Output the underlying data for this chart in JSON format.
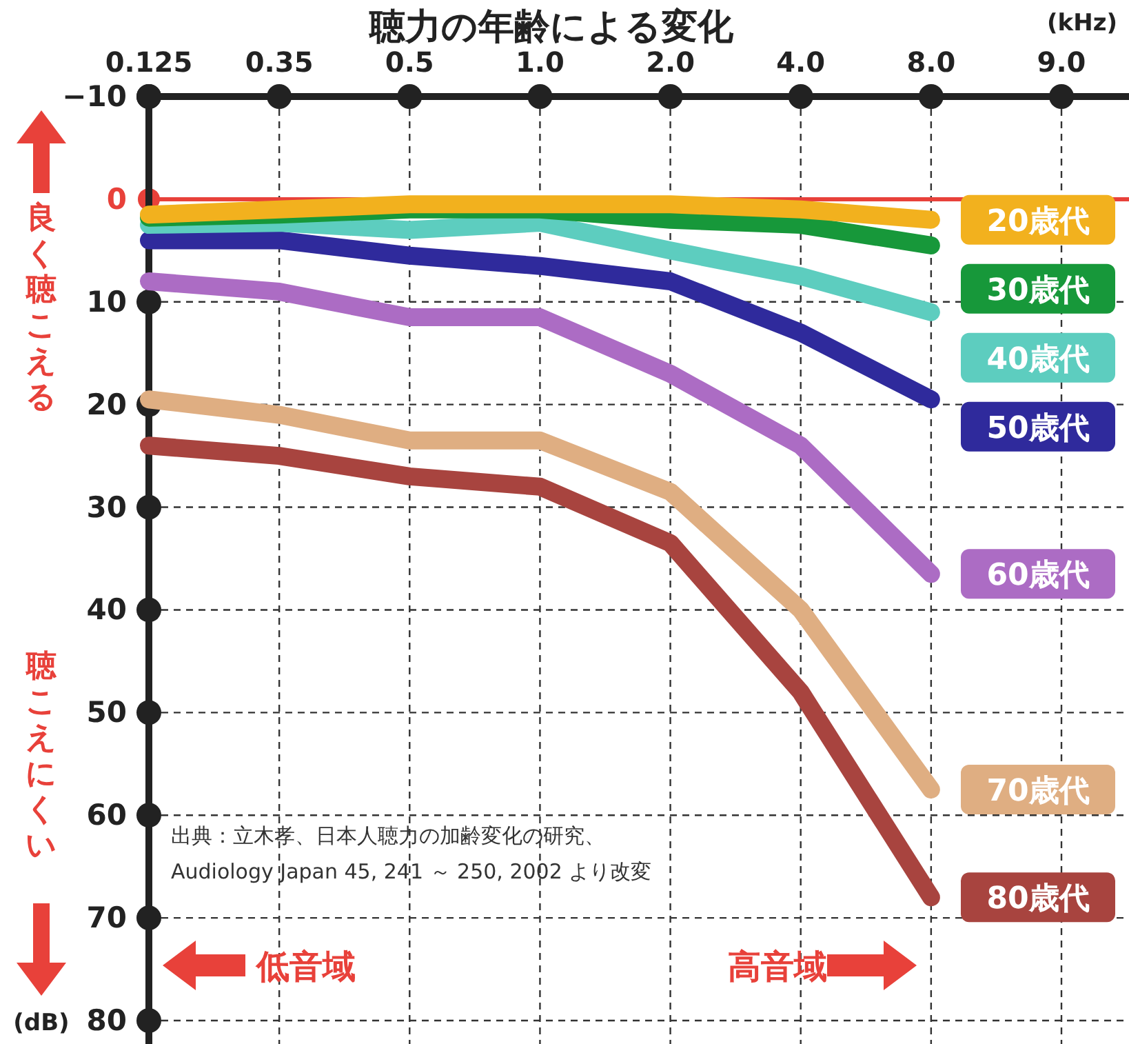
{
  "chart_data": {
    "type": "line",
    "title": "聴力の年齢による変化",
    "xlabel": "(kHz)",
    "ylabel": "(dB)",
    "categories": [
      "0.125",
      "0.35",
      "0.5",
      "1.0",
      "2.0",
      "4.0",
      "8.0",
      "9.0"
    ],
    "series": [
      {
        "name": "20歳代",
        "color": "#f2b11e",
        "values": [
          1.5,
          1,
          0.5,
          0.5,
          0.5,
          1,
          2,
          null
        ]
      },
      {
        "name": "30歳代",
        "color": "#17983a",
        "values": [
          1.8,
          1.5,
          1,
          1,
          2,
          2.5,
          4.5,
          null
        ]
      },
      {
        "name": "40歳代",
        "color": "#5dcdbf",
        "values": [
          2.5,
          2.3,
          3,
          2.3,
          5,
          7.5,
          11,
          null
        ]
      },
      {
        "name": "50歳代",
        "color": "#2f2a9c",
        "values": [
          4,
          4,
          5.5,
          6.5,
          8,
          13,
          19.5,
          null
        ]
      },
      {
        "name": "60歳代",
        "color": "#ac6cc4",
        "values": [
          8,
          9,
          11.5,
          11.5,
          17,
          24,
          36.5,
          null
        ]
      },
      {
        "name": "70歳代",
        "color": "#dfae82",
        "values": [
          19.5,
          21,
          23.5,
          23.5,
          28.5,
          40,
          57.5,
          null
        ]
      },
      {
        "name": "80歳代",
        "color": "#a8443f",
        "values": [
          24,
          25,
          27,
          28,
          33.5,
          48,
          68,
          null
        ]
      }
    ],
    "ylim": [
      80,
      -10
    ],
    "yticks": [
      {
        "value": -10,
        "label": "−10"
      },
      0,
      10,
      20,
      30,
      40,
      50,
      60,
      70,
      80
    ],
    "grid": true,
    "legend": "right",
    "line_style": "solid",
    "marker": "none",
    "ref_lines": [
      {
        "axis": "y",
        "value": 0,
        "color": "#e8413a"
      }
    ],
    "annotations": [
      "良く聴こえる",
      "聴こえにくい",
      "低音域",
      "高音域",
      "出典：立木孝、日本人聴力の加齢変化の研究、",
      "Audiology Japan 45, 241 ～ 250, 2002 より改変"
    ]
  }
}
